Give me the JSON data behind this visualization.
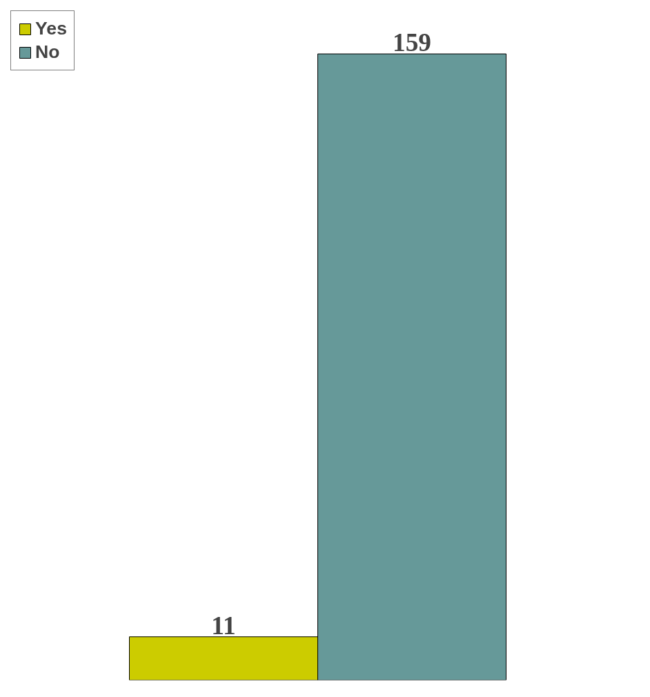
{
  "chart_data": {
    "type": "bar",
    "categories": [
      null
    ],
    "series": [
      {
        "name": "Yes",
        "color": "#cccc00",
        "values": [
          11
        ]
      },
      {
        "name": "No",
        "color": "#669999",
        "values": [
          159
        ]
      }
    ],
    "data_labels": true,
    "legend": "top left",
    "grid": false
  }
}
